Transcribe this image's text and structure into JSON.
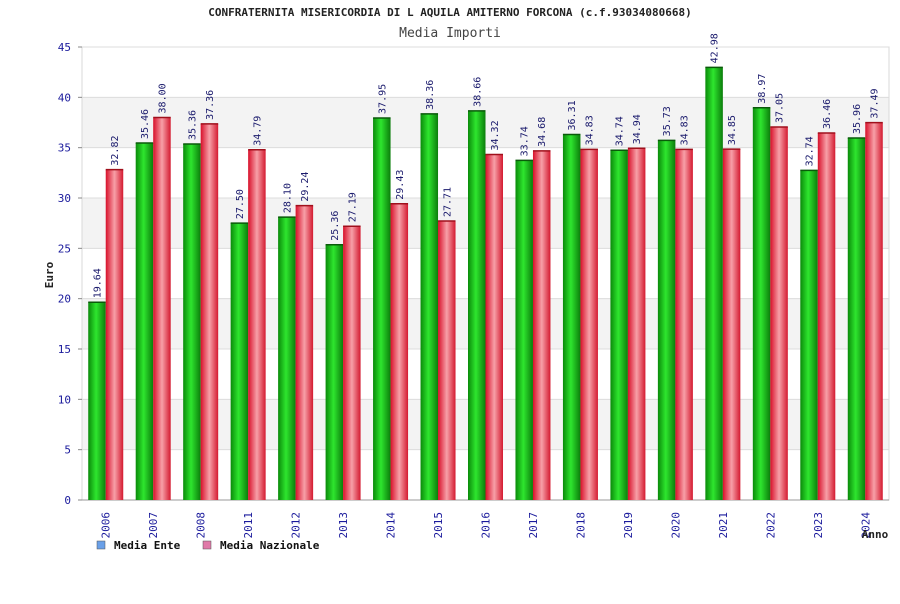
{
  "chart_data": {
    "type": "bar",
    "title": "CONFRATERNITA MISERICORDIA DI L AQUILA AMITERNO FORCONA (c.f.93034080668)",
    "subtitle": "Media Importi",
    "xlabel": "Anno",
    "ylabel": "Euro",
    "ylim": [
      0,
      45
    ],
    "yticks": [
      0,
      5,
      10,
      15,
      20,
      25,
      30,
      35,
      40,
      45
    ],
    "grid": true,
    "legend_position": "bottom-left",
    "categories": [
      "2006",
      "2007",
      "2008",
      "2011",
      "2012",
      "2013",
      "2014",
      "2015",
      "2016",
      "2017",
      "2018",
      "2019",
      "2020",
      "2021",
      "2022",
      "2023",
      "2024"
    ],
    "series": [
      {
        "name": "Media Ente",
        "color": "#1a9a1a",
        "values": [
          19.64,
          35.46,
          35.36,
          27.5,
          28.1,
          25.36,
          37.95,
          38.36,
          38.66,
          33.74,
          36.31,
          34.74,
          35.73,
          42.98,
          38.97,
          32.74,
          35.96
        ],
        "labels": [
          "19.64",
          "35.46",
          "35.36",
          "27.50",
          "28.10",
          "25.36",
          "37.95",
          "38.36",
          "38.66",
          "33.74",
          "36.31",
          "34.74",
          "35.73",
          "42.98",
          "38.97",
          "32.74",
          "35.96"
        ]
      },
      {
        "name": "Media Nazionale",
        "color": "#e0283a",
        "values": [
          32.82,
          38.0,
          37.36,
          34.79,
          29.24,
          27.19,
          29.43,
          27.71,
          34.32,
          34.68,
          34.83,
          34.94,
          34.83,
          34.85,
          37.05,
          36.46,
          37.49
        ],
        "labels": [
          "32.82",
          "38.00",
          "37.36",
          "34.79",
          "29.24",
          "27.19",
          "29.43",
          "27.71",
          "34.32",
          "34.68",
          "34.83",
          "34.94",
          "34.83",
          "34.85",
          "37.05",
          "36.46",
          "37.49"
        ]
      }
    ],
    "legend": [
      {
        "label": "Media Ente",
        "color": "#6aa0e8"
      },
      {
        "label": "Media Nazionale",
        "color": "#e07aa8"
      }
    ]
  }
}
